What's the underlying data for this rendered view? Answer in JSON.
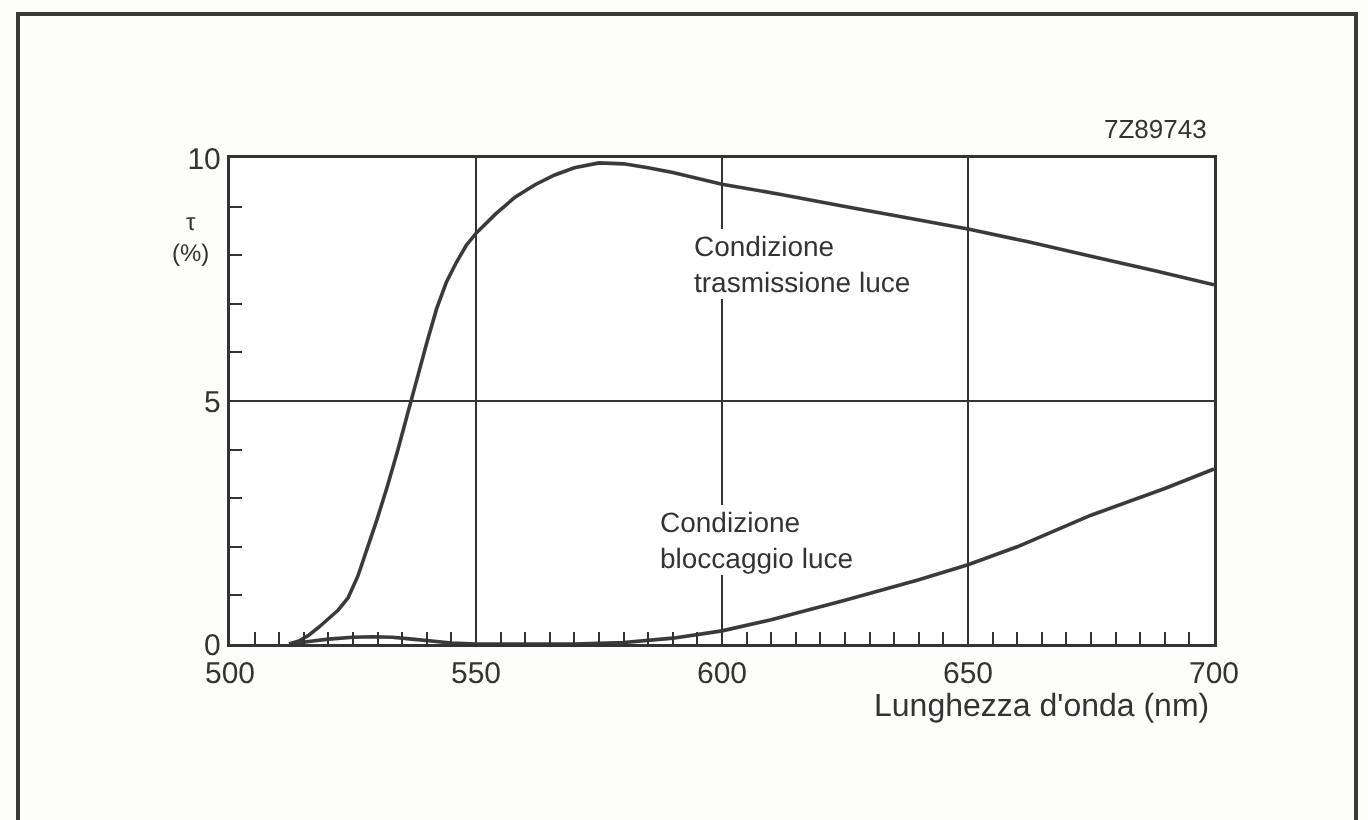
{
  "chart_data": {
    "type": "line",
    "xlabel": "Lunghezza d'onda (nm)",
    "ylabel": "τ (%)",
    "annotations": [
      "7Z89743"
    ],
    "xlim": [
      500,
      700
    ],
    "xticks": [
      500,
      {
        "value": 505,
        "label": null
      },
      {
        "value": 510,
        "label": null
      },
      {
        "value": 515,
        "label": null
      },
      {
        "value": 520,
        "label": null
      },
      {
        "value": 525,
        "label": null
      },
      {
        "value": 530,
        "label": null
      },
      {
        "value": 535,
        "label": null
      },
      {
        "value": 540,
        "label": null
      },
      {
        "value": 545,
        "label": null
      },
      550,
      {
        "value": 555,
        "label": null
      },
      {
        "value": 560,
        "label": null
      },
      {
        "value": 565,
        "label": null
      },
      {
        "value": 570,
        "label": null
      },
      {
        "value": 575,
        "label": null
      },
      {
        "value": 580,
        "label": null
      },
      {
        "value": 585,
        "label": null
      },
      {
        "value": 590,
        "label": null
      },
      {
        "value": 595,
        "label": null
      },
      600,
      {
        "value": 605,
        "label": null
      },
      {
        "value": 610,
        "label": null
      },
      {
        "value": 615,
        "label": null
      },
      {
        "value": 620,
        "label": null
      },
      {
        "value": 625,
        "label": null
      },
      {
        "value": 630,
        "label": null
      },
      {
        "value": 635,
        "label": null
      },
      {
        "value": 640,
        "label": null
      },
      {
        "value": 645,
        "label": null
      },
      650,
      {
        "value": 655,
        "label": null
      },
      {
        "value": 660,
        "label": null
      },
      {
        "value": 665,
        "label": null
      },
      {
        "value": 670,
        "label": null
      },
      {
        "value": 675,
        "label": null
      },
      {
        "value": 680,
        "label": null
      },
      {
        "value": 685,
        "label": null
      },
      {
        "value": 690,
        "label": null
      },
      {
        "value": 695,
        "label": null
      },
      700
    ],
    "ylim": [
      0,
      10
    ],
    "yticks": [
      0,
      {
        "value": 1,
        "label": null
      },
      {
        "value": 2,
        "label": null
      },
      {
        "value": 3,
        "label": null
      },
      {
        "value": 4,
        "label": null
      },
      5,
      {
        "value": 6,
        "label": null
      },
      {
        "value": 7,
        "label": null
      },
      {
        "value": 8,
        "label": null
      },
      {
        "value": 9,
        "label": null
      },
      10
    ],
    "grid": true,
    "marker": "none",
    "line_style": "solid",
    "series": [
      {
        "name": "Condizione trasmissione luce",
        "color": "#3a3a3a",
        "x": [
          512,
          514,
          516,
          518,
          520,
          522,
          524,
          526,
          528,
          530,
          532,
          534,
          536,
          538,
          540,
          542,
          544,
          546,
          548,
          550,
          554,
          558,
          562,
          566,
          570,
          575,
          580,
          585,
          590,
          600,
          612,
          625,
          637,
          650,
          662,
          675,
          688,
          700
        ],
        "values": [
          0,
          0.06,
          0.18,
          0.34,
          0.52,
          0.7,
          0.95,
          1.4,
          2.0,
          2.6,
          3.25,
          3.95,
          4.7,
          5.45,
          6.2,
          6.9,
          7.45,
          7.85,
          8.2,
          8.45,
          8.85,
          9.2,
          9.45,
          9.65,
          9.8,
          9.9,
          9.88,
          9.8,
          9.7,
          9.46,
          9.25,
          9.0,
          8.78,
          8.54,
          8.28,
          7.98,
          7.68,
          7.39
        ]
      },
      {
        "name": "Condizione bloccaggio luce",
        "color": "#3a3a3a",
        "x": [
          512,
          516,
          520,
          525,
          529,
          533,
          537,
          541,
          545,
          550,
          560,
          570,
          580,
          590,
          600,
          610,
          625,
          640,
          650,
          660,
          675,
          690,
          700
        ],
        "values": [
          0,
          0.05,
          0.1,
          0.14,
          0.15,
          0.14,
          0.1,
          0.06,
          0.02,
          0,
          0,
          0,
          0.03,
          0.12,
          0.27,
          0.5,
          0.9,
          1.32,
          1.63,
          2.0,
          2.65,
          3.2,
          3.6
        ]
      }
    ]
  }
}
